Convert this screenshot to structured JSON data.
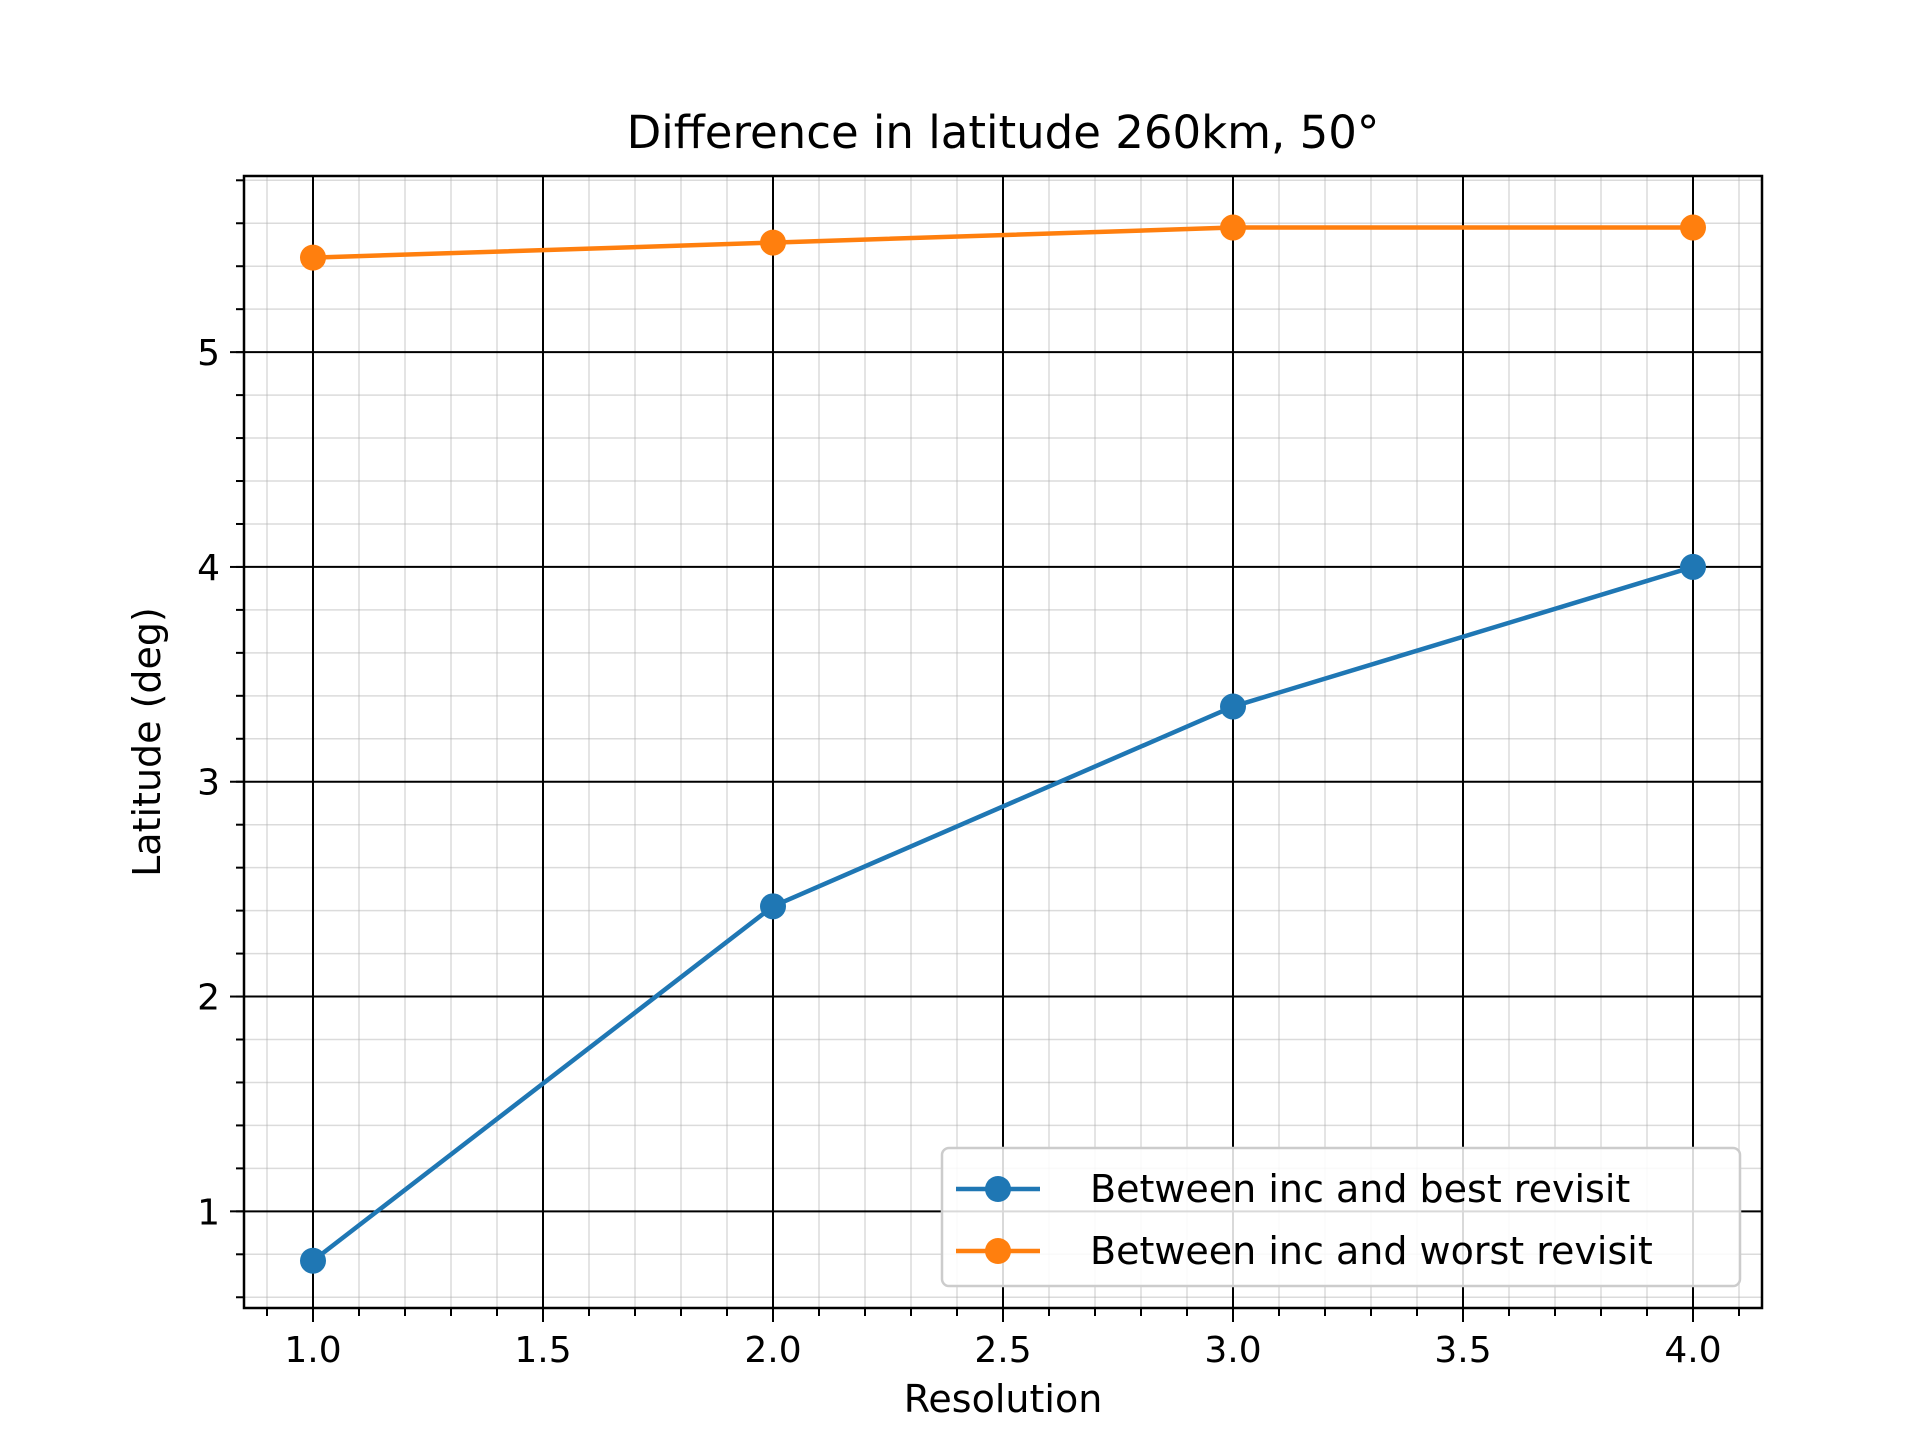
{
  "chart_data": {
    "type": "line",
    "title": "Difference in latitude 260km, 50°",
    "xlabel": "Resolution",
    "ylabel": "Latitude (deg)",
    "xlim": [
      0.85,
      4.15
    ],
    "ylim": [
      0.55,
      5.82
    ],
    "x_ticks": [
      1.0,
      1.5,
      2.0,
      2.5,
      3.0,
      3.5,
      4.0
    ],
    "x_tick_labels": [
      "1.0",
      "1.5",
      "2.0",
      "2.5",
      "3.0",
      "3.5",
      "4.0"
    ],
    "y_ticks": [
      1,
      2,
      3,
      4,
      5
    ],
    "y_tick_labels": [
      "1",
      "2",
      "3",
      "4",
      "5"
    ],
    "grid": {
      "major": true,
      "minor": true
    },
    "legend_position": "lower-right",
    "series": [
      {
        "name": "Between inc and best revisit",
        "color": "#1f77b4",
        "x": [
          1.0,
          2.0,
          3.0,
          4.0
        ],
        "y": [
          0.77,
          2.42,
          3.35,
          4.0
        ]
      },
      {
        "name": "Between inc and worst revisit",
        "color": "#ff7f0e",
        "x": [
          1.0,
          2.0,
          3.0,
          4.0
        ],
        "y": [
          5.44,
          5.51,
          5.58,
          5.58
        ]
      }
    ]
  }
}
